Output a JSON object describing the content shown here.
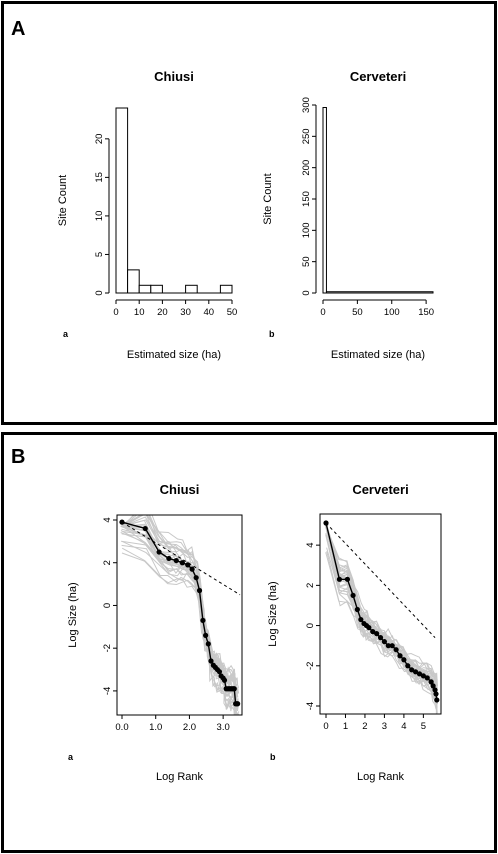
{
  "panels": {
    "A": {
      "label": "A"
    },
    "B": {
      "label": "B"
    }
  },
  "chart_data": [
    {
      "type": "bar",
      "panel": "A",
      "sublabel": "a",
      "title": "Chiusi",
      "xlabel": "Estimated size (ha)",
      "ylabel": "Site Count",
      "bin_edges": [
        0,
        5,
        10,
        15,
        20,
        25,
        30,
        35,
        40,
        45,
        50
      ],
      "values": [
        24,
        3,
        1,
        1,
        0,
        0,
        1,
        0,
        0,
        1
      ],
      "xlim": [
        0,
        50
      ],
      "ylim": [
        0,
        24
      ],
      "xticks": [
        0,
        10,
        20,
        30,
        40,
        50
      ],
      "yticks": [
        0,
        5,
        10,
        15,
        20
      ],
      "grid": false
    },
    {
      "type": "bar",
      "panel": "A",
      "sublabel": "b",
      "title": "Cerveteri",
      "xlabel": "Estimated size (ha)",
      "ylabel": "Site Count",
      "bin_edges": [
        0,
        5,
        160
      ],
      "values": [
        296,
        2
      ],
      "xlim": [
        0,
        160
      ],
      "ylim": [
        0,
        300
      ],
      "xticks": [
        0,
        50,
        100,
        150
      ],
      "yticks": [
        0,
        50,
        100,
        150,
        200,
        250,
        300
      ],
      "grid": false
    },
    {
      "type": "line",
      "panel": "B",
      "sublabel": "a",
      "title": "Chiusi",
      "xlabel": "Log Rank",
      "ylabel": "Log Size (ha)",
      "xlim": [
        0,
        3.5
      ],
      "ylim": [
        -4.8,
        4.0
      ],
      "xticks": [
        0.0,
        1.0,
        2.0,
        3.0
      ],
      "xtick_labels": [
        "0.0",
        "1.0",
        "2.0",
        "3.0"
      ],
      "yticks": [
        -4,
        -2,
        0,
        2,
        4
      ],
      "grid": false,
      "series": [
        {
          "role": "observed",
          "color": "#000000",
          "x": [
            0.0,
            0.69,
            1.1,
            1.39,
            1.61,
            1.79,
            1.95,
            2.08,
            2.2,
            2.3,
            2.4,
            2.48,
            2.56,
            2.64,
            2.71,
            2.77,
            2.83,
            2.89,
            2.94,
            3.0,
            3.04,
            3.09,
            3.14,
            3.18,
            3.22,
            3.26,
            3.3,
            3.33,
            3.37,
            3.4,
            3.43
          ],
          "y": [
            3.9,
            3.6,
            2.5,
            2.2,
            2.1,
            2.0,
            1.9,
            1.7,
            1.3,
            0.7,
            -0.7,
            -1.4,
            -1.8,
            -2.6,
            -2.8,
            -2.9,
            -3.0,
            -3.1,
            -3.3,
            -3.4,
            -3.5,
            -3.9,
            -3.9,
            -3.9,
            -3.9,
            -3.9,
            -3.9,
            -3.9,
            -4.6,
            -4.6,
            -4.6
          ]
        },
        {
          "role": "fit",
          "style": "dashed",
          "color": "#000000",
          "x": [
            0.0,
            3.5
          ],
          "y": [
            3.9,
            0.5
          ]
        }
      ]
    },
    {
      "type": "line",
      "panel": "B",
      "sublabel": "b",
      "title": "Cerveteri",
      "xlabel": "Log Rank",
      "ylabel": "Log Size (ha)",
      "xlim": [
        0,
        5.7
      ],
      "ylim": [
        -4.0,
        5.3
      ],
      "xticks": [
        0,
        1,
        2,
        3,
        4,
        5
      ],
      "yticks": [
        -4,
        -2,
        0,
        2,
        4
      ],
      "grid": false,
      "series": [
        {
          "role": "observed",
          "color": "#000000",
          "x": [
            0.0,
            0.69,
            1.1,
            1.39,
            1.61,
            1.79,
            1.95,
            2.08,
            2.2,
            2.4,
            2.6,
            2.8,
            3.0,
            3.2,
            3.4,
            3.6,
            3.8,
            4.0,
            4.2,
            4.4,
            4.6,
            4.8,
            5.0,
            5.2,
            5.4,
            5.5,
            5.6,
            5.65,
            5.69
          ],
          "y": [
            5.1,
            2.3,
            2.3,
            1.5,
            0.8,
            0.3,
            0.1,
            0.0,
            -0.1,
            -0.3,
            -0.4,
            -0.6,
            -0.8,
            -1.0,
            -1.0,
            -1.2,
            -1.5,
            -1.7,
            -2.0,
            -2.2,
            -2.3,
            -2.4,
            -2.5,
            -2.6,
            -2.8,
            -3.0,
            -3.2,
            -3.4,
            -3.7
          ]
        },
        {
          "role": "fit",
          "style": "dashed",
          "color": "#000000",
          "x": [
            0.0,
            5.6
          ],
          "y": [
            5.1,
            -0.6
          ]
        }
      ]
    }
  ],
  "colors": {
    "simulation_lines": "#c8c8c8",
    "observed": "#000000",
    "frame": "#000000"
  }
}
